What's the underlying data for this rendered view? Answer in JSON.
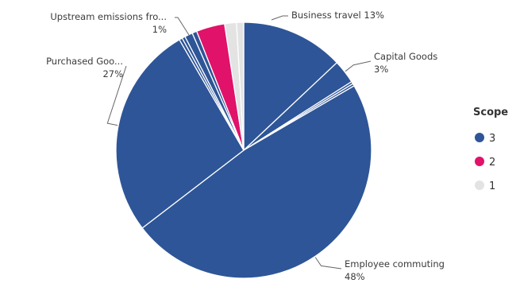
{
  "chart_data": {
    "type": "pie",
    "title": "",
    "slices": [
      {
        "label": "Business travel",
        "value": 13,
        "scope": "3"
      },
      {
        "label": "Capital Goods",
        "value": 3,
        "scope": "3"
      },
      {
        "label": "",
        "value": 0.3,
        "scope": "3"
      },
      {
        "label": "",
        "value": 0.3,
        "scope": "3"
      },
      {
        "label": "Employee commuting",
        "value": 48,
        "scope": "3"
      },
      {
        "label": "Purchased Goo...",
        "value": 27,
        "scope": "3"
      },
      {
        "label": "",
        "value": 0.4,
        "scope": "3"
      },
      {
        "label": "",
        "value": 0.4,
        "scope": "3"
      },
      {
        "label": "Upstream emissions fro...",
        "value": 1,
        "scope": "3"
      },
      {
        "label": "",
        "value": 0.6,
        "scope": "3"
      },
      {
        "label": "",
        "value": 3.6,
        "scope": "2"
      },
      {
        "label": "",
        "value": 1.5,
        "scope": "1"
      },
      {
        "label": "",
        "value": 0.9,
        "scope": "1"
      }
    ],
    "data_labels": [
      {
        "slice": 0,
        "lines": [
          "Business travel 13%"
        ],
        "anchor": "start"
      },
      {
        "slice": 1,
        "lines": [
          "Capital Goods",
          "3%"
        ],
        "anchor": "start"
      },
      {
        "slice": 4,
        "lines": [
          "Employee commuting",
          "48%"
        ],
        "anchor": "start"
      },
      {
        "slice": 5,
        "lines": [
          "Purchased Goo...",
          "27%"
        ],
        "anchor": "end"
      },
      {
        "slice": 8,
        "lines": [
          "Upstream emissions fro...",
          "1%"
        ],
        "anchor": "end"
      }
    ],
    "legend": {
      "title": "Scope",
      "position": "right",
      "entries": [
        {
          "name": "3",
          "color": "#2e5597"
        },
        {
          "name": "2",
          "color": "#e0126a"
        },
        {
          "name": "1",
          "color": "#e3e3e3"
        }
      ]
    }
  }
}
